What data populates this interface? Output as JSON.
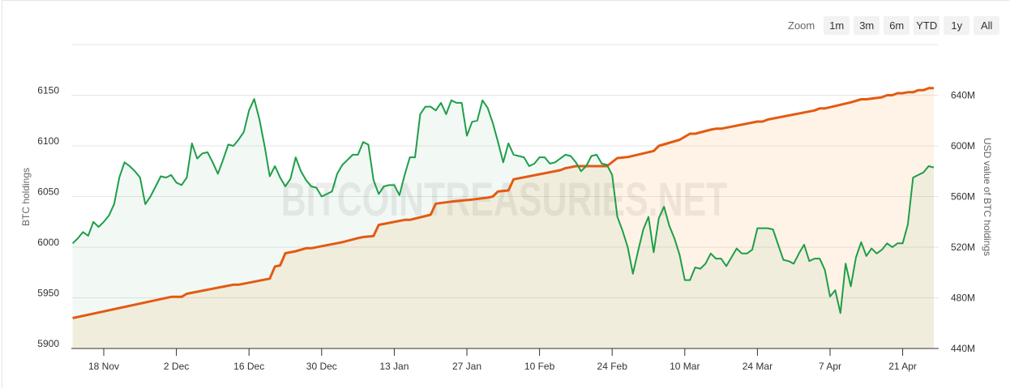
{
  "zoom": {
    "label": "Zoom",
    "buttons": [
      "1m",
      "3m",
      "6m",
      "YTD",
      "1y",
      "All"
    ]
  },
  "watermark": "BITCOINTREASURIES.NET",
  "chart_data": {
    "type": "area",
    "xlabel": "",
    "x_ticks": [
      "18 Nov",
      "2 Dec",
      "16 Dec",
      "30 Dec",
      "13 Jan",
      "27 Jan",
      "10 Feb",
      "24 Feb",
      "10 Mar",
      "24 Mar",
      "7 Apr",
      "21 Apr"
    ],
    "y_left": {
      "label": "BTC holdings",
      "ticks": [
        "5900",
        "5950",
        "6000",
        "6050",
        "6100",
        "6150"
      ],
      "range": [
        5900,
        6200
      ]
    },
    "y_right": {
      "label": "USD value of BTC holdings",
      "ticks": [
        "440M",
        "480M",
        "520M",
        "560M",
        "600M",
        "640M"
      ],
      "range": [
        440,
        680
      ],
      "unit": "M USD"
    },
    "grid": true,
    "legend": "none",
    "colors": {
      "btc": "#e35a12",
      "usd": "#1e9e48"
    },
    "series": [
      {
        "axis": "left",
        "color": "#e35a12",
        "points": [
          [
            "12 Nov",
            5930
          ],
          [
            "1 Dec",
            5951
          ],
          [
            "3 Dec",
            5951
          ],
          [
            "4 Dec",
            5954
          ],
          [
            "12 Dec",
            5962
          ],
          [
            "13 Dec",
            5963
          ],
          [
            "14 Dec",
            5963
          ],
          [
            "20 Dec",
            5969
          ],
          [
            "21 Dec",
            5981
          ],
          [
            "22 Dec",
            5982
          ],
          [
            "23 Dec",
            5994
          ],
          [
            "25 Dec",
            5996
          ],
          [
            "27 Dec",
            5999
          ],
          [
            "28 Dec",
            5999
          ],
          [
            "3 Jan",
            6005
          ],
          [
            "6 Jan",
            6009
          ],
          [
            "7 Jan",
            6010
          ],
          [
            "9 Jan",
            6011
          ],
          [
            "10 Jan",
            6022
          ],
          [
            "15 Jan",
            6027
          ],
          [
            "16 Jan",
            6027
          ],
          [
            "20 Jan",
            6032
          ],
          [
            "21 Jan",
            6043
          ],
          [
            "24 Jan",
            6045
          ],
          [
            "28 Jan",
            6047
          ],
          [
            "31 Jan",
            6049
          ],
          [
            "1 Feb",
            6050
          ],
          [
            "2 Feb",
            6055
          ],
          [
            "4 Feb",
            6056
          ],
          [
            "5 Feb",
            6067
          ],
          [
            "14 Feb",
            6076
          ],
          [
            "15 Feb",
            6078
          ],
          [
            "16 Feb",
            6079
          ],
          [
            "17 Feb",
            6080
          ],
          [
            "23 Feb",
            6080
          ],
          [
            "25 Feb",
            6088
          ],
          [
            "27 Feb",
            6089
          ],
          [
            "4 Mar",
            6095
          ],
          [
            "5 Mar",
            6100
          ],
          [
            "9 Mar",
            6106
          ],
          [
            "11 Mar",
            6112
          ],
          [
            "12 Mar",
            6112
          ],
          [
            "15 Mar",
            6116
          ],
          [
            "16 Mar",
            6117
          ],
          [
            "17 Mar",
            6117
          ],
          [
            "24 Mar",
            6124
          ],
          [
            "25 Mar",
            6124
          ],
          [
            "26 Mar",
            6126
          ],
          [
            "4 Apr",
            6135
          ],
          [
            "5 Apr",
            6137
          ],
          [
            "6 Apr",
            6137
          ],
          [
            "11 Apr",
            6143
          ],
          [
            "13 Apr",
            6146
          ],
          [
            "14 Apr",
            6146
          ],
          [
            "17 Apr",
            6148
          ],
          [
            "18 Apr",
            6150
          ],
          [
            "19 Apr",
            6150
          ],
          [
            "20 Apr",
            6152
          ],
          [
            "21 Apr",
            6152
          ],
          [
            "22 Apr",
            6153
          ],
          [
            "23 Apr",
            6153
          ],
          [
            "24 Apr",
            6155
          ],
          [
            "25 Apr",
            6155
          ],
          [
            "26 Apr",
            6157
          ],
          [
            "27 Apr",
            6157
          ]
        ]
      },
      {
        "axis": "right",
        "color": "#1e9e48",
        "points": [
          [
            "12 Nov",
            523
          ],
          [
            "13 Nov",
            527
          ],
          [
            "14 Nov",
            532
          ],
          [
            "15 Nov",
            529
          ],
          [
            "16 Nov",
            540
          ],
          [
            "17 Nov",
            536
          ],
          [
            "18 Nov",
            540
          ],
          [
            "19 Nov",
            545
          ],
          [
            "20 Nov",
            554
          ],
          [
            "21 Nov",
            575
          ],
          [
            "22 Nov",
            587
          ],
          [
            "23 Nov",
            584
          ],
          [
            "24 Nov",
            580
          ],
          [
            "25 Nov",
            575
          ],
          [
            "26 Nov",
            554
          ],
          [
            "27 Nov",
            560
          ],
          [
            "28 Nov",
            568
          ],
          [
            "29 Nov",
            576
          ],
          [
            "30 Nov",
            575
          ],
          [
            "1 Dec",
            577
          ],
          [
            "2 Dec",
            571
          ],
          [
            "3 Dec",
            569
          ],
          [
            "4 Dec",
            575
          ],
          [
            "5 Dec",
            602
          ],
          [
            "6 Dec",
            590
          ],
          [
            "7 Dec",
            594
          ],
          [
            "8 Dec",
            595
          ],
          [
            "9 Dec",
            587
          ],
          [
            "10 Dec",
            578
          ],
          [
            "11 Dec",
            589
          ],
          [
            "12 Dec",
            601
          ],
          [
            "13 Dec",
            600
          ],
          [
            "14 Dec",
            605
          ],
          [
            "15 Dec",
            611
          ],
          [
            "16 Dec",
            628
          ],
          [
            "17 Dec",
            637
          ],
          [
            "18 Dec",
            621
          ],
          [
            "19 Dec",
            600
          ],
          [
            "20 Dec",
            576
          ],
          [
            "21 Dec",
            584
          ],
          [
            "22 Dec",
            575
          ],
          [
            "23 Dec",
            568
          ],
          [
            "24 Dec",
            574
          ],
          [
            "25 Dec",
            591
          ],
          [
            "26 Dec",
            580
          ],
          [
            "27 Dec",
            573
          ],
          [
            "28 Dec",
            568
          ],
          [
            "29 Dec",
            567
          ],
          [
            "30 Dec",
            560
          ],
          [
            "31 Dec",
            562
          ],
          [
            "1 Jan",
            564
          ],
          [
            "2 Jan",
            578
          ],
          [
            "3 Jan",
            585
          ],
          [
            "4 Jan",
            589
          ],
          [
            "5 Jan",
            593
          ],
          [
            "6 Jan",
            593
          ],
          [
            "7 Jan",
            603
          ],
          [
            "8 Jan",
            601
          ],
          [
            "9 Jan",
            573
          ],
          [
            "10 Jan",
            562
          ],
          [
            "11 Jan",
            568
          ],
          [
            "12 Jan",
            569
          ],
          [
            "13 Jan",
            569
          ],
          [
            "14 Jan",
            561
          ],
          [
            "15 Jan",
            577
          ],
          [
            "16 Jan",
            591
          ],
          [
            "17 Jan",
            591
          ],
          [
            "18 Jan",
            625
          ],
          [
            "19 Jan",
            631
          ],
          [
            "20 Jan",
            631
          ],
          [
            "21 Jan",
            628
          ],
          [
            "22 Jan",
            634
          ],
          [
            "23 Jan",
            625
          ],
          [
            "24 Jan",
            636
          ],
          [
            "25 Jan",
            634
          ],
          [
            "26 Jan",
            634
          ],
          [
            "27 Jan",
            608
          ],
          [
            "28 Jan",
            619
          ],
          [
            "29 Jan",
            620
          ],
          [
            "30 Jan",
            636
          ],
          [
            "31 Jan",
            630
          ],
          [
            "1 Feb",
            618
          ],
          [
            "2 Feb",
            603
          ],
          [
            "3 Feb",
            587
          ],
          [
            "4 Feb",
            602
          ],
          [
            "5 Feb",
            593
          ],
          [
            "6 Feb",
            592
          ],
          [
            "7 Feb",
            591
          ],
          [
            "8 Feb",
            584
          ],
          [
            "9 Feb",
            586
          ],
          [
            "10 Feb",
            591
          ],
          [
            "11 Feb",
            591
          ],
          [
            "12 Feb",
            586
          ],
          [
            "13 Feb",
            587
          ],
          [
            "14 Feb",
            590
          ],
          [
            "15 Feb",
            593
          ],
          [
            "16 Feb",
            592
          ],
          [
            "17 Feb",
            587
          ],
          [
            "18 Feb",
            580
          ],
          [
            "19 Feb",
            584
          ],
          [
            "20 Feb",
            592
          ],
          [
            "21 Feb",
            593
          ],
          [
            "22 Feb",
            586
          ],
          [
            "23 Feb",
            585
          ],
          [
            "24 Feb",
            577
          ],
          [
            "25 Feb",
            544
          ],
          [
            "26 Feb",
            533
          ],
          [
            "27 Feb",
            520
          ],
          [
            "28 Feb",
            499
          ],
          [
            "1 Mar",
            517
          ],
          [
            "2 Mar",
            534
          ],
          [
            "3 Mar",
            544
          ],
          [
            "4 Mar",
            516
          ],
          [
            "5 Mar",
            543
          ],
          [
            "6 Mar",
            552
          ],
          [
            "7 Mar",
            537
          ],
          [
            "8 Mar",
            527
          ],
          [
            "9 Mar",
            514
          ],
          [
            "10 Mar",
            494
          ],
          [
            "11 Mar",
            494
          ],
          [
            "12 Mar",
            504
          ],
          [
            "13 Mar",
            503
          ],
          [
            "14 Mar",
            507
          ],
          [
            "15 Mar",
            515
          ],
          [
            "16 Mar",
            511
          ],
          [
            "17 Mar",
            511
          ],
          [
            "18 Mar",
            505
          ],
          [
            "19 Mar",
            512
          ],
          [
            "20 Mar",
            519
          ],
          [
            "21 Mar",
            515
          ],
          [
            "22 Mar",
            515
          ],
          [
            "23 Mar",
            518
          ],
          [
            "24 Mar",
            535
          ],
          [
            "25 Mar",
            535
          ],
          [
            "26 Mar",
            535
          ],
          [
            "27 Mar",
            534
          ],
          [
            "28 Mar",
            522
          ],
          [
            "29 Mar",
            510
          ],
          [
            "30 Mar",
            509
          ],
          [
            "31 Mar",
            507
          ],
          [
            "1 Apr",
            515
          ],
          [
            "2 Apr",
            522
          ],
          [
            "3 Apr",
            509
          ],
          [
            "4 Apr",
            511
          ],
          [
            "5 Apr",
            511
          ],
          [
            "6 Apr",
            502
          ],
          [
            "7 Apr",
            481
          ],
          [
            "8 Apr",
            486
          ],
          [
            "9 Apr",
            468
          ],
          [
            "10 Apr",
            507
          ],
          [
            "11 Apr",
            489
          ],
          [
            "12 Apr",
            512
          ],
          [
            "13 Apr",
            524
          ],
          [
            "14 Apr",
            513
          ],
          [
            "15 Apr",
            519
          ],
          [
            "16 Apr",
            515
          ],
          [
            "17 Apr",
            518
          ],
          [
            "18 Apr",
            523
          ],
          [
            "19 Apr",
            520
          ],
          [
            "20 Apr",
            523
          ],
          [
            "21 Apr",
            523
          ],
          [
            "22 Apr",
            538
          ],
          [
            "23 Apr",
            575
          ],
          [
            "24 Apr",
            577
          ],
          [
            "25 Apr",
            579
          ],
          [
            "26 Apr",
            584
          ],
          [
            "27 Apr",
            583
          ]
        ]
      }
    ]
  }
}
